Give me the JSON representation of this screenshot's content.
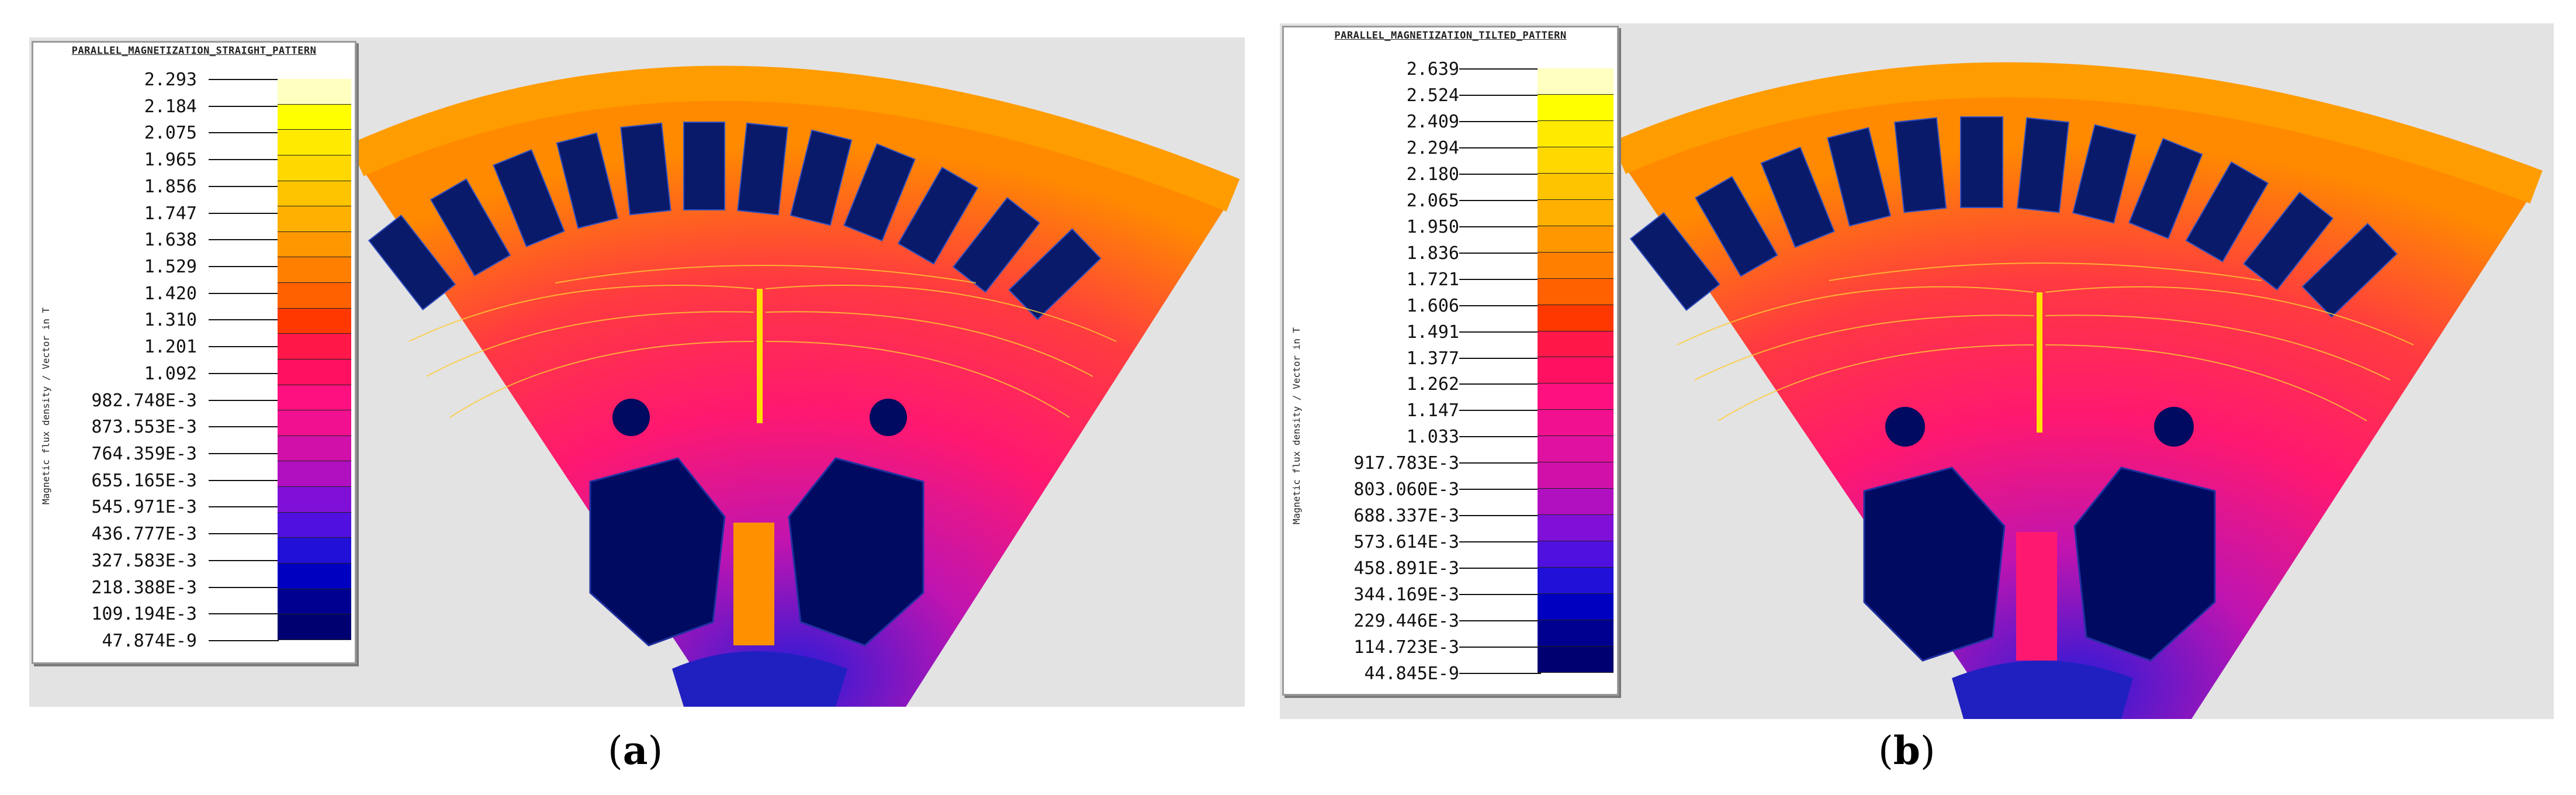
{
  "figure": {
    "panels": [
      {
        "id": "a",
        "legend_title": "PARALLEL_MAGNETIZATION_STRAIGHT_PATTERN",
        "axis_label": "Magnetic flux density / Vector in T",
        "tick_labels": [
          "2.293",
          "2.184",
          "2.075",
          "1.965",
          "1.856",
          "1.747",
          "1.638",
          "1.529",
          "1.420",
          "1.310",
          "1.201",
          "1.092",
          "982.748E-3",
          "873.553E-3",
          "764.359E-3",
          "655.165E-3",
          "545.971E-3",
          "436.777E-3",
          "327.583E-3",
          "218.388E-3",
          "109.194E-3",
          "47.874E-9"
        ],
        "caption_open": "(",
        "caption_letter": "a",
        "caption_close": ")",
        "slot_fraction_right": 0.0,
        "colors": [
          "#ffffc0",
          "#ffff00",
          "#ffea00",
          "#ffd800",
          "#ffc400",
          "#ffb000",
          "#ff9800",
          "#ff8000",
          "#ff6000",
          "#ff3800",
          "#ff1848",
          "#ff1060",
          "#ff1080",
          "#f01090",
          "#d010a8",
          "#b010c0",
          "#8010d8",
          "#5010e0",
          "#2010d8",
          "#0000c0",
          "#000090",
          "#000070"
        ]
      },
      {
        "id": "b",
        "legend_title": "PARALLEL_MAGNETIZATION_TILTED_PATTERN",
        "axis_label": "Magnetic flux density / Vector in T",
        "tick_labels": [
          "2.639",
          "2.524",
          "2.409",
          "2.294",
          "2.180",
          "2.065",
          "1.950",
          "1.836",
          "1.721",
          "1.606",
          "1.491",
          "1.377",
          "1.262",
          "1.147",
          "1.033",
          "917.783E-3",
          "803.060E-3",
          "688.337E-3",
          "573.614E-3",
          "458.891E-3",
          "344.169E-3",
          "229.446E-3",
          "114.723E-3",
          "44.845E-9"
        ],
        "caption_open": "(",
        "caption_letter": "b",
        "caption_close": ")",
        "colors": [
          "#ffffc0",
          "#ffff00",
          "#ffea00",
          "#ffd800",
          "#ffc400",
          "#ffb000",
          "#ff9800",
          "#ff8000",
          "#ff6000",
          "#ff3800",
          "#ff1848",
          "#ff1060",
          "#ff1080",
          "#f01090",
          "#e010a0",
          "#d010a8",
          "#b010c0",
          "#8010d8",
          "#5010e0",
          "#2010d8",
          "#0000c0",
          "#000090",
          "#000070"
        ]
      }
    ]
  }
}
